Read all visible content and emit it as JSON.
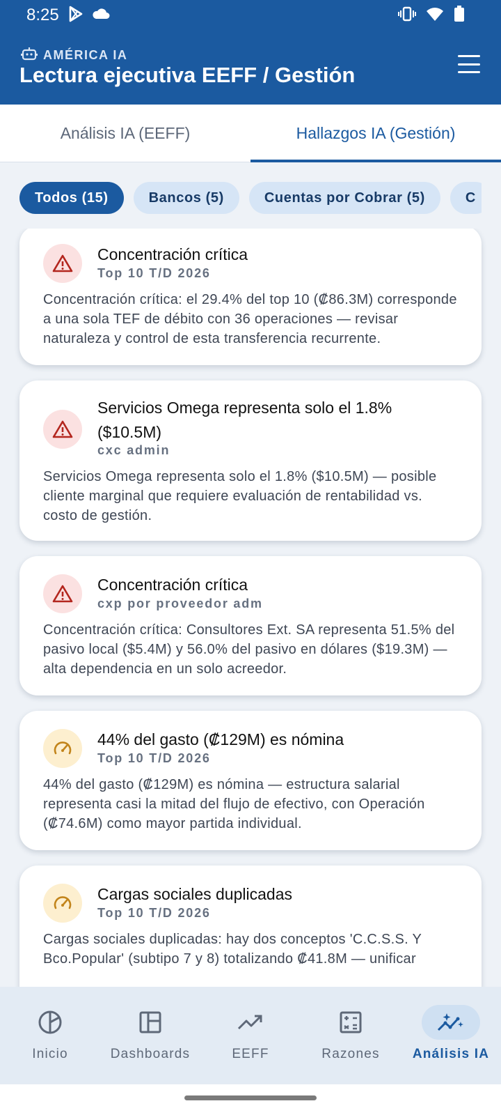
{
  "status_bar": {
    "time": "8:25",
    "left_icons": [
      "play-store-icon",
      "cloud-icon"
    ],
    "right_icons": [
      "vibrate-icon",
      "wifi-icon",
      "battery-icon"
    ]
  },
  "header": {
    "brand": "AMÉRICA IA",
    "brand_icon": "robot-icon",
    "title": "Lectura ejecutiva EEFF / Gestión",
    "menu_icon": "menu-icon"
  },
  "tabs": [
    {
      "label": "Análisis IA (EEFF)",
      "active": false
    },
    {
      "label": "Hallazgos IA (Gestión)",
      "active": true
    }
  ],
  "chips": [
    {
      "label": "Todos (15)",
      "active": true
    },
    {
      "label": "Bancos (5)",
      "active": false
    },
    {
      "label": "Cuentas por Cobrar (5)",
      "active": false
    },
    {
      "label": "C",
      "active": false
    }
  ],
  "cards": [
    {
      "icon": "warning-icon",
      "severity": "critical",
      "title": "Concentración crítica",
      "subtitle": "Top 10 T/D 2026",
      "body": "Concentración crítica: el 29.4% del top 10 (₡86.3M) corresponde a una sola TEF de débito con 36 operaciones — revisar naturaleza y control de esta transferencia recurrente."
    },
    {
      "icon": "warning-icon",
      "severity": "critical",
      "title": "Servicios Omega representa solo el 1.8% ($10.5M)",
      "subtitle": "cxc admin",
      "body": "Servicios Omega representa solo el 1.8% ($10.5M) — posible cliente marginal que requiere evaluación de rentabilidad vs. costo de gestión."
    },
    {
      "icon": "warning-icon",
      "severity": "critical",
      "title": "Concentración crítica",
      "subtitle": "cxp por proveedor adm",
      "body": "Concentración crítica: Consultores Ext. SA representa 51.5% del pasivo local ($5.4M) y 56.0% del pasivo en dólares ($19.3M) — alta dependencia en un solo acreedor."
    },
    {
      "icon": "gauge-icon",
      "severity": "warning",
      "title": "44% del gasto (₡129M) es nómina",
      "subtitle": "Top 10 T/D 2026",
      "body": "44% del gasto (₡129M) es nómina — estructura salarial representa casi la mitad del flujo de efectivo, con Operación (₡74.6M) como mayor partida individual."
    },
    {
      "icon": "gauge-icon",
      "severity": "warning",
      "title": "Cargas sociales duplicadas",
      "subtitle": "Top 10 T/D 2026",
      "body": "Cargas sociales duplicadas: hay dos conceptos 'C.C.S.S. Y Bco.Popular' (subtipo 7 y 8) totalizando ₡41.8M — unificar"
    }
  ],
  "bottom_nav": [
    {
      "label": "Inicio",
      "icon": "pie-chart-icon",
      "active": false
    },
    {
      "label": "Dashboards",
      "icon": "dashboard-icon",
      "active": false
    },
    {
      "label": "EEFF",
      "icon": "trending-up-icon",
      "active": false
    },
    {
      "label": "Razones",
      "icon": "calculator-icon",
      "active": false
    },
    {
      "label": "Análisis IA",
      "icon": "sparkle-chart-icon",
      "active": true
    }
  ],
  "colors": {
    "primary": "#1b5aa0",
    "critical_icon": "#b3261e",
    "critical_bg": "#fbe1e1",
    "warning_icon": "#c2841a",
    "warning_bg": "#fdefcf"
  }
}
